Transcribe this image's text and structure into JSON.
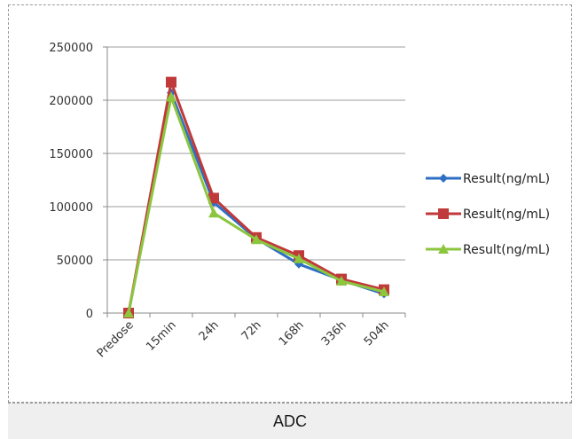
{
  "caption": "ADC",
  "chart_data": {
    "type": "line",
    "categories": [
      "Predose",
      "15min",
      "24h",
      "72h",
      "168h",
      "336h",
      "504h"
    ],
    "ylim": [
      0,
      250000
    ],
    "yticks": [
      "0",
      "50000",
      "100000",
      "150000",
      "200000",
      "250000"
    ],
    "grid": true,
    "legend_position": "right",
    "series": [
      {
        "name": "Result(ng/mL)",
        "color": "#2e6fc4",
        "marker": "diamond",
        "values": [
          0,
          207000,
          104000,
          70000,
          46000,
          31000,
          18000
        ]
      },
      {
        "name": "Result(ng/mL)",
        "color": "#c0393b",
        "marker": "square",
        "values": [
          0,
          217000,
          108000,
          71000,
          54000,
          32000,
          22000
        ]
      },
      {
        "name": "Result(ng/mL)",
        "color": "#8cc63f",
        "marker": "triangle",
        "values": [
          0,
          203000,
          94000,
          69000,
          51000,
          30000,
          20000
        ]
      }
    ]
  }
}
